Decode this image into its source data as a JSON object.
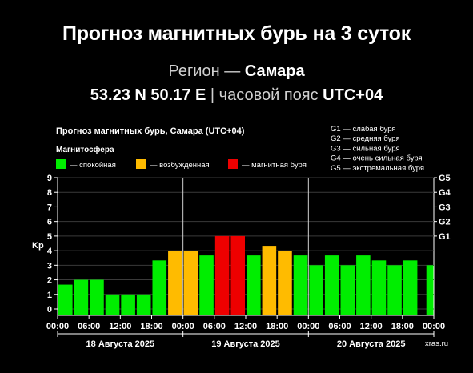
{
  "header": {
    "title": "Прогноз магнитных бурь на 3 суток",
    "region_label": "Регион —",
    "region_name": "Самара",
    "coordinates": "53.23 N 50.17 E",
    "separator": "|",
    "timezone_label": "часовой пояс",
    "timezone": "UTC+04"
  },
  "colors": {
    "calm": "#00ee00",
    "excited": "#ffbb00",
    "storm": "#ee0000",
    "background": "#000000"
  },
  "chart_data": {
    "type": "bar",
    "title": "Прогноз магнитных бурь, Самара (UTC+04)",
    "legend_title": "Магнитосфера",
    "legend": [
      {
        "label": "— спокойная",
        "color": "#00ee00"
      },
      {
        "label": "— возбужденная",
        "color": "#ffbb00"
      },
      {
        "label": "— магнитная буря",
        "color": "#ee0000"
      }
    ],
    "storm_scale": [
      "G1 — слабая буря",
      "G2 — средняя буря",
      "G3 — сильная буря",
      "G4 — очень сильная буря",
      "G5 — экстремальная буря"
    ],
    "ylabel": "Kp",
    "ylim": [
      0,
      9
    ],
    "yticks": [
      "0",
      "1",
      "2",
      "3",
      "4",
      "5",
      "6",
      "7",
      "8",
      "9"
    ],
    "g_ticks": [
      {
        "label": "G1",
        "value": 5
      },
      {
        "label": "G2",
        "value": 6
      },
      {
        "label": "G3",
        "value": 7
      },
      {
        "label": "G4",
        "value": 8
      },
      {
        "label": "G5",
        "value": 9
      }
    ],
    "xticks": [
      "00:00",
      "06:00",
      "12:00",
      "18:00",
      "00:00",
      "06:00",
      "12:00",
      "18:00",
      "00:00",
      "06:00",
      "12:00",
      "18:00",
      "00:00"
    ],
    "days": [
      "18 Августа 2025",
      "19 Августа 2025",
      "20 Августа 2025"
    ],
    "values": [
      1.33,
      1.67,
      2.0,
      2.0,
      1.0,
      1.0,
      1.0,
      3.33,
      4.0,
      4.0,
      3.67,
      5.0,
      5.0,
      3.67,
      4.33,
      4.0,
      3.67,
      3.0,
      3.67,
      3.0,
      3.67,
      3.33,
      3.0,
      3.33,
      3.0
    ],
    "levels": [
      "calm",
      "calm",
      "calm",
      "calm",
      "calm",
      "calm",
      "calm",
      "calm",
      "excited",
      "excited",
      "calm",
      "storm",
      "storm",
      "calm",
      "excited",
      "excited",
      "calm",
      "calm",
      "calm",
      "calm",
      "calm",
      "calm",
      "calm",
      "calm",
      "calm"
    ],
    "grid": true,
    "watermark": "xras.ru"
  }
}
